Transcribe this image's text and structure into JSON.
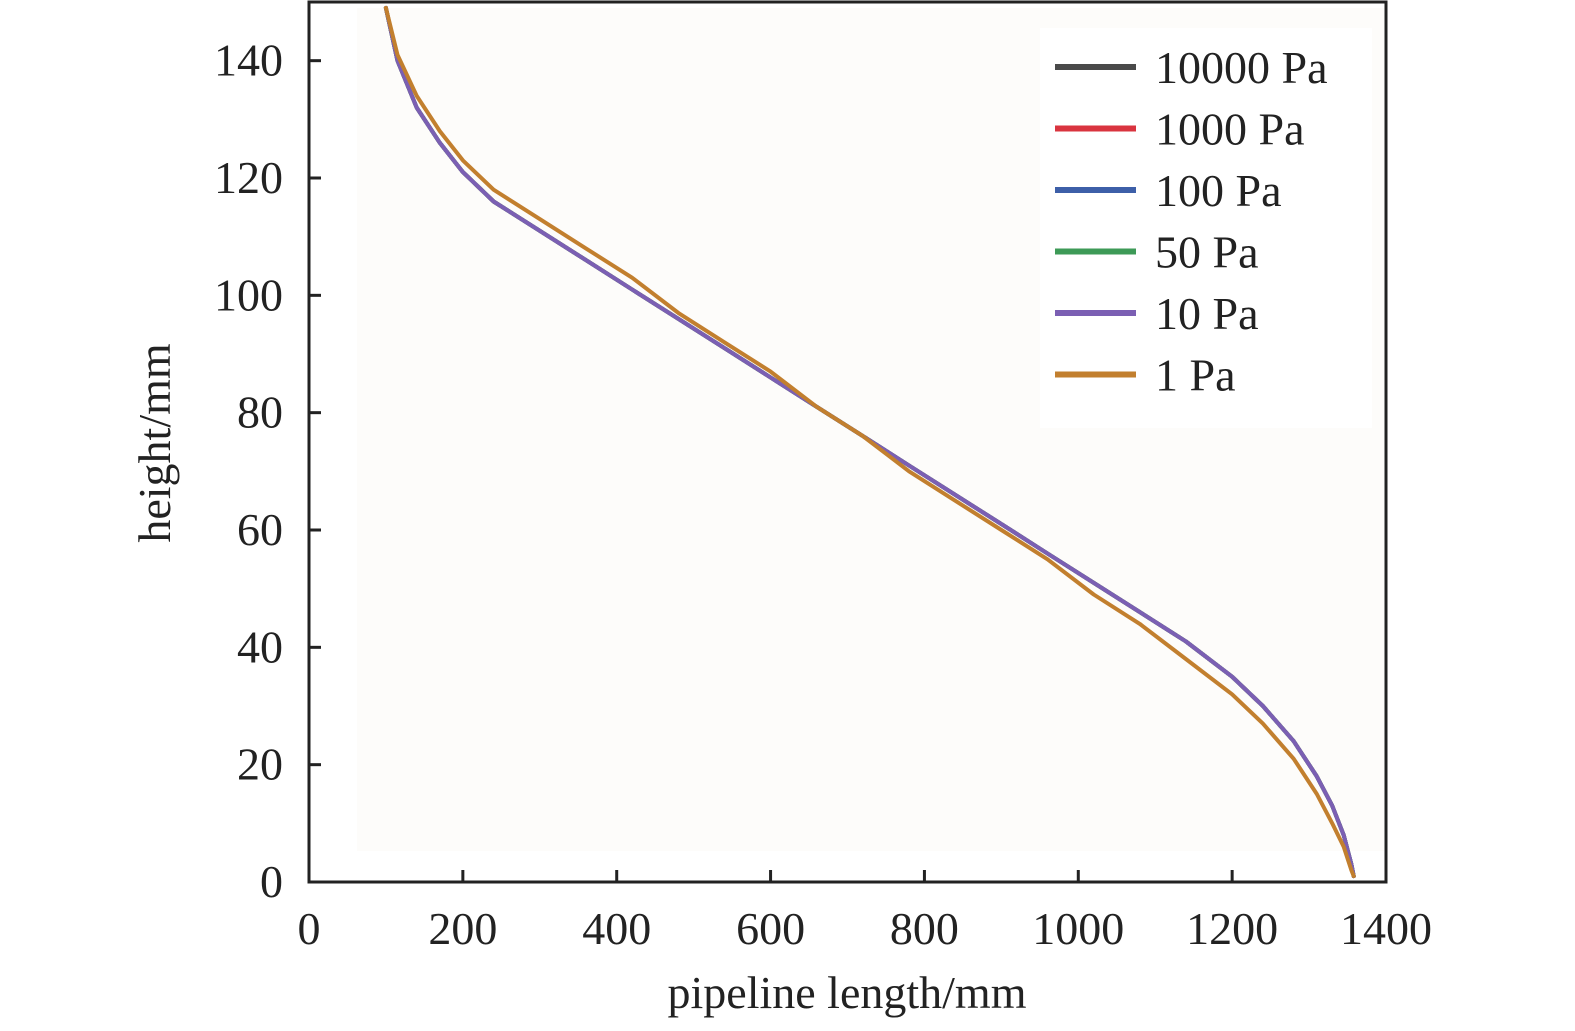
{
  "chart_data": {
    "type": "line",
    "title": "",
    "xlabel": "pipeline length/mm",
    "ylabel": "height/mm",
    "xlim": [
      0,
      1400
    ],
    "ylim": [
      0,
      150
    ],
    "x_ticks": [
      0,
      200,
      400,
      600,
      800,
      1000,
      1200,
      1400
    ],
    "y_ticks": [
      0,
      20,
      40,
      60,
      80,
      100,
      120,
      140
    ],
    "grid": false,
    "legend_position": "top-right",
    "series": [
      {
        "name": "10000 Pa",
        "color": "#4a4a4a",
        "x": [
          100,
          115,
          140,
          170,
          200,
          240,
          300,
          360,
          420,
          480,
          540,
          600,
          660,
          720,
          780,
          840,
          900,
          960,
          1020,
          1080,
          1140,
          1200,
          1240,
          1280,
          1310,
          1330,
          1345,
          1355,
          1358
        ],
        "y": [
          149,
          140,
          132,
          126,
          121,
          116,
          111,
          106,
          101,
          96,
          91,
          86,
          81,
          76,
          71,
          66,
          61,
          56,
          51,
          46,
          41,
          35,
          30,
          24,
          18,
          13,
          8,
          3,
          1
        ]
      },
      {
        "name": "1000 Pa",
        "color": "#d9343f",
        "x": [
          100,
          115,
          140,
          170,
          200,
          240,
          300,
          360,
          420,
          480,
          540,
          600,
          660,
          720,
          780,
          840,
          900,
          960,
          1020,
          1080,
          1140,
          1200,
          1240,
          1280,
          1310,
          1330,
          1345,
          1355,
          1358
        ],
        "y": [
          149,
          140,
          132,
          126,
          121,
          116,
          111,
          106,
          101,
          96,
          91,
          86,
          81,
          76,
          71,
          66,
          61,
          56,
          51,
          46,
          41,
          35,
          30,
          24,
          18,
          13,
          8,
          3,
          1
        ]
      },
      {
        "name": "100 Pa",
        "color": "#3d5fa8",
        "x": [
          100,
          115,
          140,
          170,
          200,
          240,
          300,
          360,
          420,
          480,
          540,
          600,
          660,
          720,
          780,
          840,
          900,
          960,
          1020,
          1080,
          1140,
          1200,
          1240,
          1280,
          1310,
          1330,
          1345,
          1355,
          1358
        ],
        "y": [
          149,
          140,
          132,
          126,
          121,
          116,
          111,
          106,
          101,
          96,
          91,
          86,
          81,
          76,
          71,
          66,
          61,
          56,
          51,
          46,
          41,
          35,
          30,
          24,
          18,
          13,
          8,
          3,
          1
        ]
      },
      {
        "name": "50 Pa",
        "color": "#3d9a57",
        "x": [
          100,
          115,
          140,
          170,
          200,
          240,
          300,
          360,
          420,
          480,
          540,
          600,
          660,
          720,
          780,
          840,
          900,
          960,
          1020,
          1080,
          1140,
          1200,
          1240,
          1280,
          1310,
          1330,
          1345,
          1355,
          1358
        ],
        "y": [
          149,
          140,
          132,
          126,
          121,
          116,
          111,
          106,
          101,
          96,
          91,
          86,
          81,
          76,
          71,
          66,
          61,
          56,
          51,
          46,
          41,
          35,
          30,
          24,
          18,
          13,
          8,
          3,
          1
        ]
      },
      {
        "name": "10 Pa",
        "color": "#7b5fb3",
        "x": [
          100,
          115,
          140,
          170,
          200,
          240,
          300,
          360,
          420,
          480,
          540,
          600,
          660,
          720,
          780,
          840,
          900,
          960,
          1020,
          1080,
          1140,
          1200,
          1240,
          1280,
          1310,
          1330,
          1345,
          1355,
          1358
        ],
        "y": [
          149,
          140,
          132,
          126,
          121,
          116,
          111,
          106,
          101,
          96,
          91,
          86,
          81,
          76,
          71,
          66,
          61,
          56,
          51,
          46,
          41,
          35,
          30,
          24,
          18,
          13,
          8,
          3,
          1
        ]
      },
      {
        "name": "1 Pa",
        "color": "#c27f2e",
        "x": [
          100,
          115,
          140,
          170,
          200,
          240,
          300,
          360,
          420,
          480,
          540,
          600,
          660,
          720,
          780,
          840,
          900,
          960,
          1020,
          1080,
          1140,
          1200,
          1240,
          1280,
          1310,
          1330,
          1345,
          1355,
          1358
        ],
        "y": [
          149,
          141,
          134,
          128,
          123,
          118,
          113,
          108,
          103,
          97,
          92,
          87,
          81,
          76,
          70,
          65,
          60,
          55,
          49,
          44,
          38,
          32,
          27,
          21,
          15,
          10,
          6,
          2,
          1
        ]
      }
    ]
  }
}
